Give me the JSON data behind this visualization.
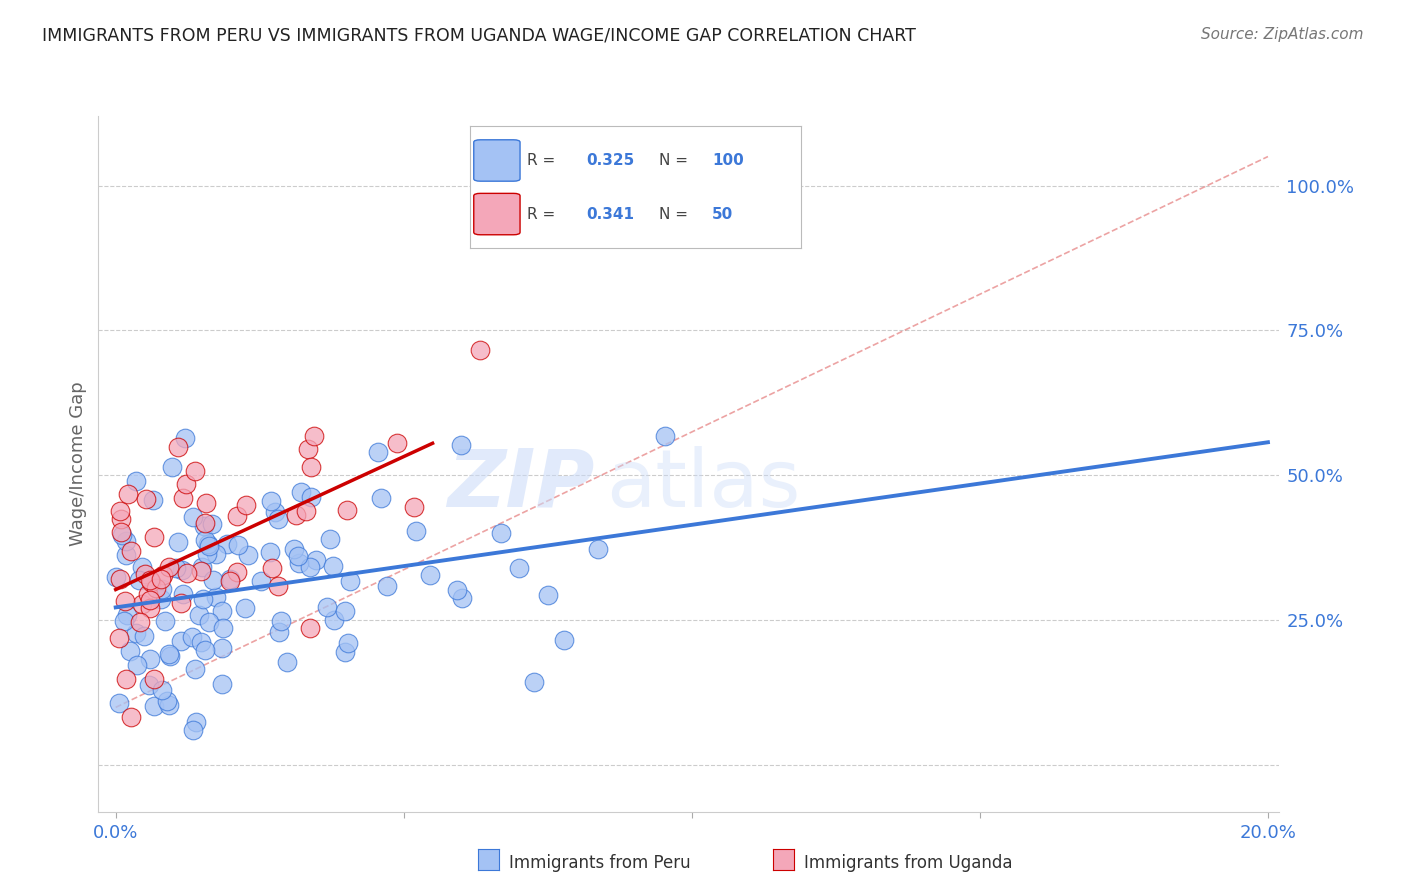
{
  "title": "IMMIGRANTS FROM PERU VS IMMIGRANTS FROM UGANDA WAGE/INCOME GAP CORRELATION CHART",
  "source": "Source: ZipAtlas.com",
  "ylabel": "Wage/Income Gap",
  "peru_color": "#a4c2f4",
  "peru_color_line": "#3c78d8",
  "uganda_color": "#f4a7b9",
  "uganda_color_line": "#cc0000",
  "peru_R": 0.325,
  "peru_N": 100,
  "uganda_R": 0.341,
  "uganda_N": 50,
  "legend_peru_label": "Immigrants from Peru",
  "legend_uganda_label": "Immigrants from Uganda",
  "watermark_zip": "ZIP",
  "watermark_atlas": "atlas",
  "background_color": "#ffffff",
  "grid_color": "#cccccc",
  "title_color": "#222222",
  "axis_label_color": "#3c78d8",
  "axis_tick_color": "#3c78d8"
}
